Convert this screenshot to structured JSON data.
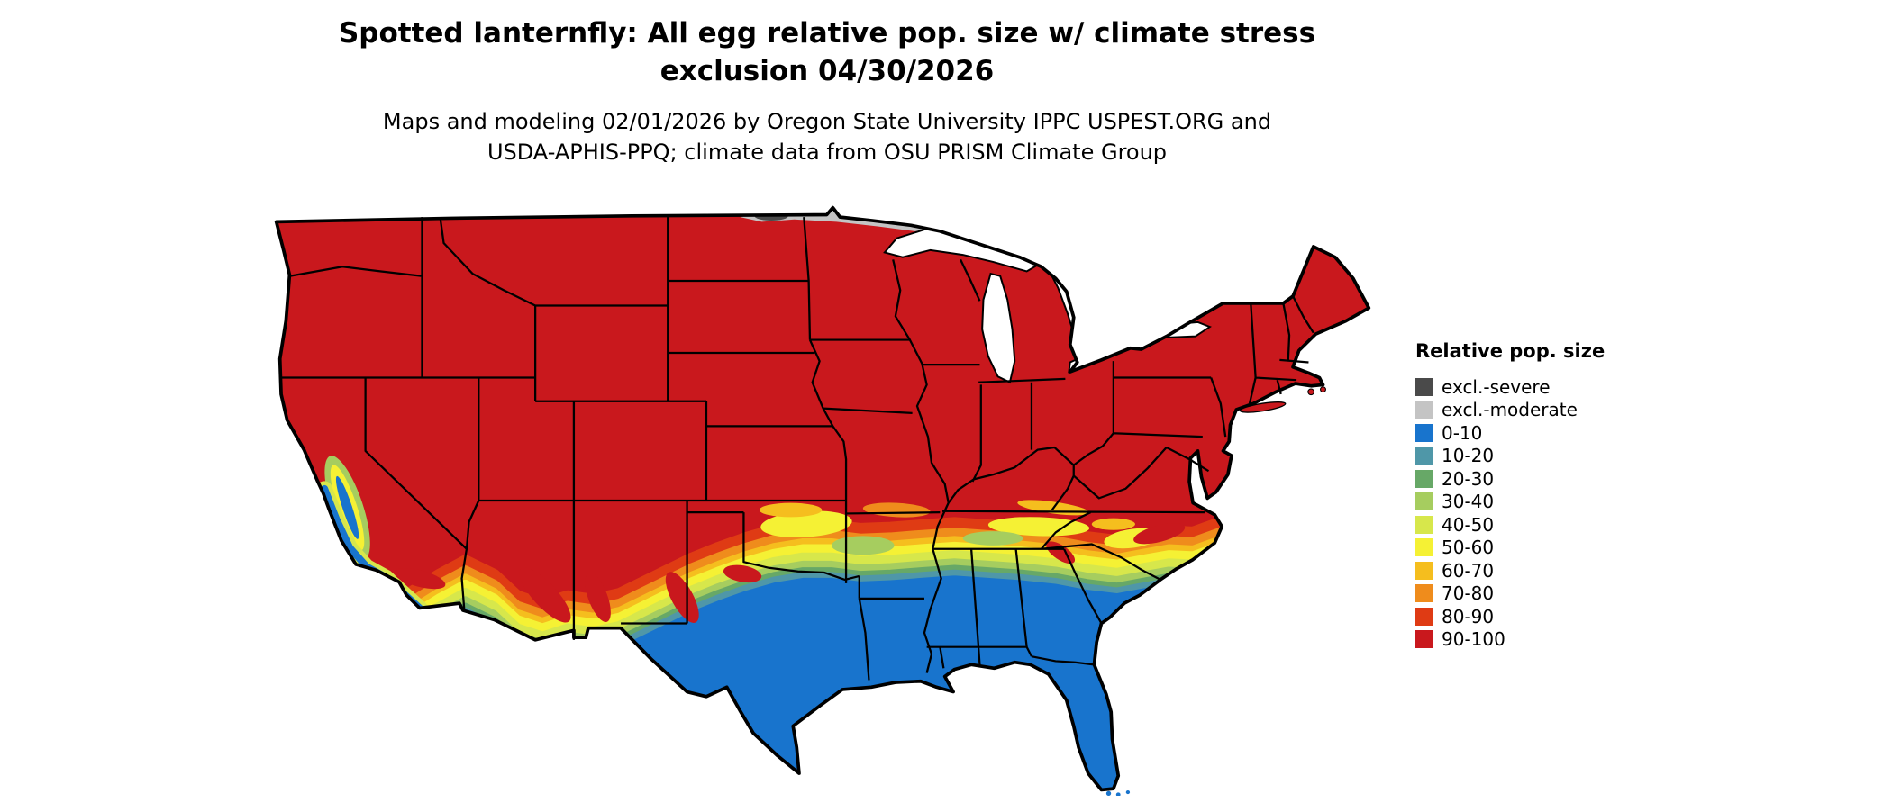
{
  "title": {
    "line1": "Spotted lanternfly: All egg relative pop. size w/ climate stress",
    "line2": "exclusion 04/30/2026"
  },
  "subtitle": {
    "line1": "Maps and modeling 02/01/2026 by Oregon State University IPPC USPEST.ORG and",
    "line2": "USDA-APHIS-PPQ; climate data from OSU PRISM Climate Group"
  },
  "legend": {
    "title": "Relative pop. size",
    "items": [
      {
        "label": "excl.-severe",
        "color": "#4a4a4a"
      },
      {
        "label": "excl.-moderate",
        "color": "#c4c4c4"
      },
      {
        "label": "0-10",
        "color": "#1874cd"
      },
      {
        "label": "10-20",
        "color": "#4f97a8"
      },
      {
        "label": "20-30",
        "color": "#67a867"
      },
      {
        "label": "30-40",
        "color": "#a6cd5f"
      },
      {
        "label": "40-50",
        "color": "#d7e74b"
      },
      {
        "label": "50-60",
        "color": "#f5f134"
      },
      {
        "label": "60-70",
        "color": "#f5be1e"
      },
      {
        "label": "70-80",
        "color": "#ef8c1c"
      },
      {
        "label": "80-90",
        "color": "#df3b14"
      },
      {
        "label": "90-100",
        "color": "#c9181d"
      }
    ]
  },
  "palette": {
    "excl_severe": "#4a4a4a",
    "excl_moderate": "#c4c4c4",
    "b0": "#1874cd",
    "b10": "#4f97a8",
    "b20": "#67a867",
    "b30": "#a6cd5f",
    "b40": "#d7e74b",
    "b50": "#f5f134",
    "b60": "#f5be1e",
    "b70": "#ef8c1c",
    "b80": "#df3b14",
    "b90": "#c9181d"
  },
  "map": {
    "type": "choropleth-raster",
    "extent": "contiguous United States with state boundaries",
    "pattern_note": "90-100 (red) across the northern and central US; graded yellow-orange transition band across the southern plains, mid-south and Carolina piedmont; 0-10 (blue) across south Texas, the Gulf Coast states, Florida, the southeast coastal plain, southern Arizona/New Mexico and coastal California; excl.-moderate (gray) band along the northern Minnesota / North Dakota border"
  }
}
